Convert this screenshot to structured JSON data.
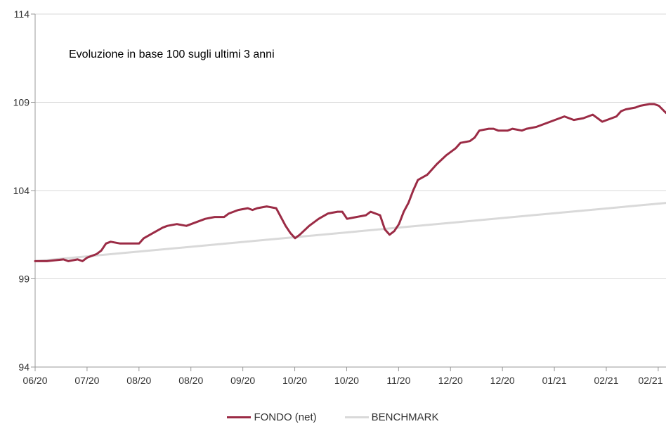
{
  "chart_data": {
    "type": "line",
    "title": "Evoluzione in base 100 sugli ultimi 3 anni",
    "xlabel": "",
    "ylabel": "",
    "ylim": [
      94,
      114
    ],
    "yticks": [
      94,
      99,
      104,
      109,
      114
    ],
    "xtick_labels": [
      "06/20",
      "07/20",
      "08/20",
      "08/20",
      "09/20",
      "10/20",
      "10/20",
      "11/20",
      "12/20",
      "12/20",
      "01/21",
      "02/21",
      "02/21"
    ],
    "grid": "horizontal",
    "legend_position": "bottom",
    "series": [
      {
        "name": "FONDO (net)",
        "color": "#9b2b45",
        "points": [
          [
            0,
            100.0
          ],
          [
            5,
            100.0
          ],
          [
            12,
            100.1
          ],
          [
            14,
            100.0
          ],
          [
            18,
            100.1
          ],
          [
            20,
            100.0
          ],
          [
            22,
            100.2
          ],
          [
            26,
            100.4
          ],
          [
            28,
            100.6
          ],
          [
            30,
            101.0
          ],
          [
            32,
            101.1
          ],
          [
            36,
            101.0
          ],
          [
            40,
            101.0
          ],
          [
            44,
            101.0
          ],
          [
            46,
            101.3
          ],
          [
            50,
            101.6
          ],
          [
            54,
            101.9
          ],
          [
            56,
            102.0
          ],
          [
            60,
            102.1
          ],
          [
            64,
            102.0
          ],
          [
            68,
            102.2
          ],
          [
            72,
            102.4
          ],
          [
            76,
            102.5
          ],
          [
            80,
            102.5
          ],
          [
            82,
            102.7
          ],
          [
            86,
            102.9
          ],
          [
            90,
            103.0
          ],
          [
            92,
            102.9
          ],
          [
            94,
            103.0
          ],
          [
            98,
            103.1
          ],
          [
            102,
            103.0
          ],
          [
            104,
            102.5
          ],
          [
            106,
            102.0
          ],
          [
            108,
            101.6
          ],
          [
            110,
            101.3
          ],
          [
            112,
            101.5
          ],
          [
            116,
            102.0
          ],
          [
            120,
            102.4
          ],
          [
            124,
            102.7
          ],
          [
            128,
            102.8
          ],
          [
            130,
            102.8
          ],
          [
            132,
            102.4
          ],
          [
            136,
            102.5
          ],
          [
            140,
            102.6
          ],
          [
            142,
            102.8
          ],
          [
            146,
            102.6
          ],
          [
            148,
            101.8
          ],
          [
            150,
            101.5
          ],
          [
            152,
            101.7
          ],
          [
            154,
            102.1
          ],
          [
            156,
            102.8
          ],
          [
            158,
            103.3
          ],
          [
            160,
            104.0
          ],
          [
            162,
            104.6
          ],
          [
            166,
            104.9
          ],
          [
            170,
            105.5
          ],
          [
            174,
            106.0
          ],
          [
            178,
            106.4
          ],
          [
            180,
            106.7
          ],
          [
            184,
            106.8
          ],
          [
            186,
            107.0
          ],
          [
            188,
            107.4
          ],
          [
            192,
            107.5
          ],
          [
            194,
            107.5
          ],
          [
            196,
            107.4
          ],
          [
            200,
            107.4
          ],
          [
            202,
            107.5
          ],
          [
            206,
            107.4
          ],
          [
            208,
            107.5
          ],
          [
            212,
            107.6
          ],
          [
            216,
            107.8
          ],
          [
            220,
            108.0
          ],
          [
            224,
            108.2
          ],
          [
            226,
            108.1
          ],
          [
            228,
            108.0
          ],
          [
            232,
            108.1
          ],
          [
            234,
            108.2
          ],
          [
            236,
            108.3
          ],
          [
            238,
            108.1
          ],
          [
            240,
            107.9
          ],
          [
            242,
            108.0
          ],
          [
            246,
            108.2
          ],
          [
            248,
            108.5
          ],
          [
            250,
            108.6
          ],
          [
            254,
            108.7
          ],
          [
            256,
            108.8
          ],
          [
            260,
            108.9
          ],
          [
            262,
            108.9
          ],
          [
            264,
            108.8
          ],
          [
            267,
            108.4
          ]
        ]
      },
      {
        "name": "BENCHMARK",
        "color": "#d9d9d9",
        "points": [
          [
            0,
            100.0
          ],
          [
            267,
            103.3
          ]
        ]
      }
    ]
  }
}
